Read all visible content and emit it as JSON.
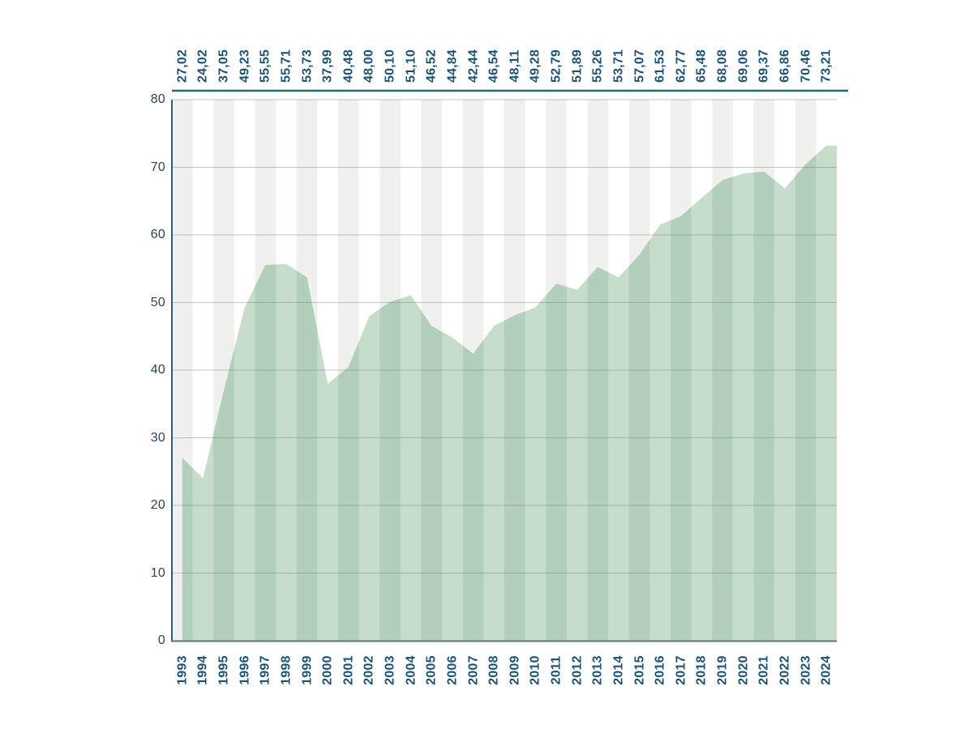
{
  "page": {
    "background": "#ffffff"
  },
  "chart_data": {
    "type": "area",
    "title": "",
    "xlabel": "",
    "ylabel": "",
    "legend": "none",
    "ylim": [
      0,
      80
    ],
    "y_ticks": [
      "0",
      "10",
      "20",
      "30",
      "40",
      "50",
      "60",
      "70",
      "80"
    ],
    "grid": "horizontal gridlines every 10 units; alternating vertical grey/white year stripes",
    "years": [
      "1993",
      "1994",
      "1995",
      "1996",
      "1997",
      "1998",
      "1999",
      "2000",
      "2001",
      "2002",
      "2003",
      "2004",
      "2005",
      "2006",
      "2007",
      "2008",
      "2009",
      "2010",
      "2011",
      "2012",
      "2013",
      "2014",
      "2015",
      "2016",
      "2017",
      "2018",
      "2019",
      "2020",
      "2021",
      "2022",
      "2023",
      "2024"
    ],
    "values": [
      27.02,
      24.02,
      37.05,
      49.23,
      55.55,
      55.71,
      53.73,
      37.99,
      40.48,
      48.0,
      50.1,
      51.1,
      46.52,
      44.84,
      42.44,
      46.54,
      48.11,
      49.28,
      52.79,
      51.89,
      55.26,
      53.71,
      57.07,
      61.53,
      62.77,
      65.48,
      68.08,
      69.06,
      69.37,
      66.86,
      70.46,
      73.21
    ],
    "value_labels": [
      "27,02",
      "24,02",
      "37,05",
      "49,23",
      "55,55",
      "55,71",
      "53,73",
      "37,99",
      "40,48",
      "48,00",
      "50,10",
      "51,10",
      "46,52",
      "44,84",
      "42,44",
      "46,54",
      "48,11",
      "49,28",
      "52,79",
      "51,89",
      "55,26",
      "53,71",
      "57,07",
      "61,53",
      "62,77",
      "65,48",
      "68,08",
      "69,06",
      "69,37",
      "66,86",
      "70,46",
      "73,21"
    ],
    "colors": {
      "area_fill_light": "#c7ddcc",
      "area_fill_dark": "#b2cfbc",
      "stripe_gray": "#f0f0ee",
      "label_navy": "#1c5274",
      "tick_gray_blue": "#2b4358",
      "header_rule_teal": "#216b6d",
      "y_axis": "#2f5d7c",
      "x_axis": "#5f7077",
      "gridline": "rgba(100,105,105,0.38)"
    }
  }
}
